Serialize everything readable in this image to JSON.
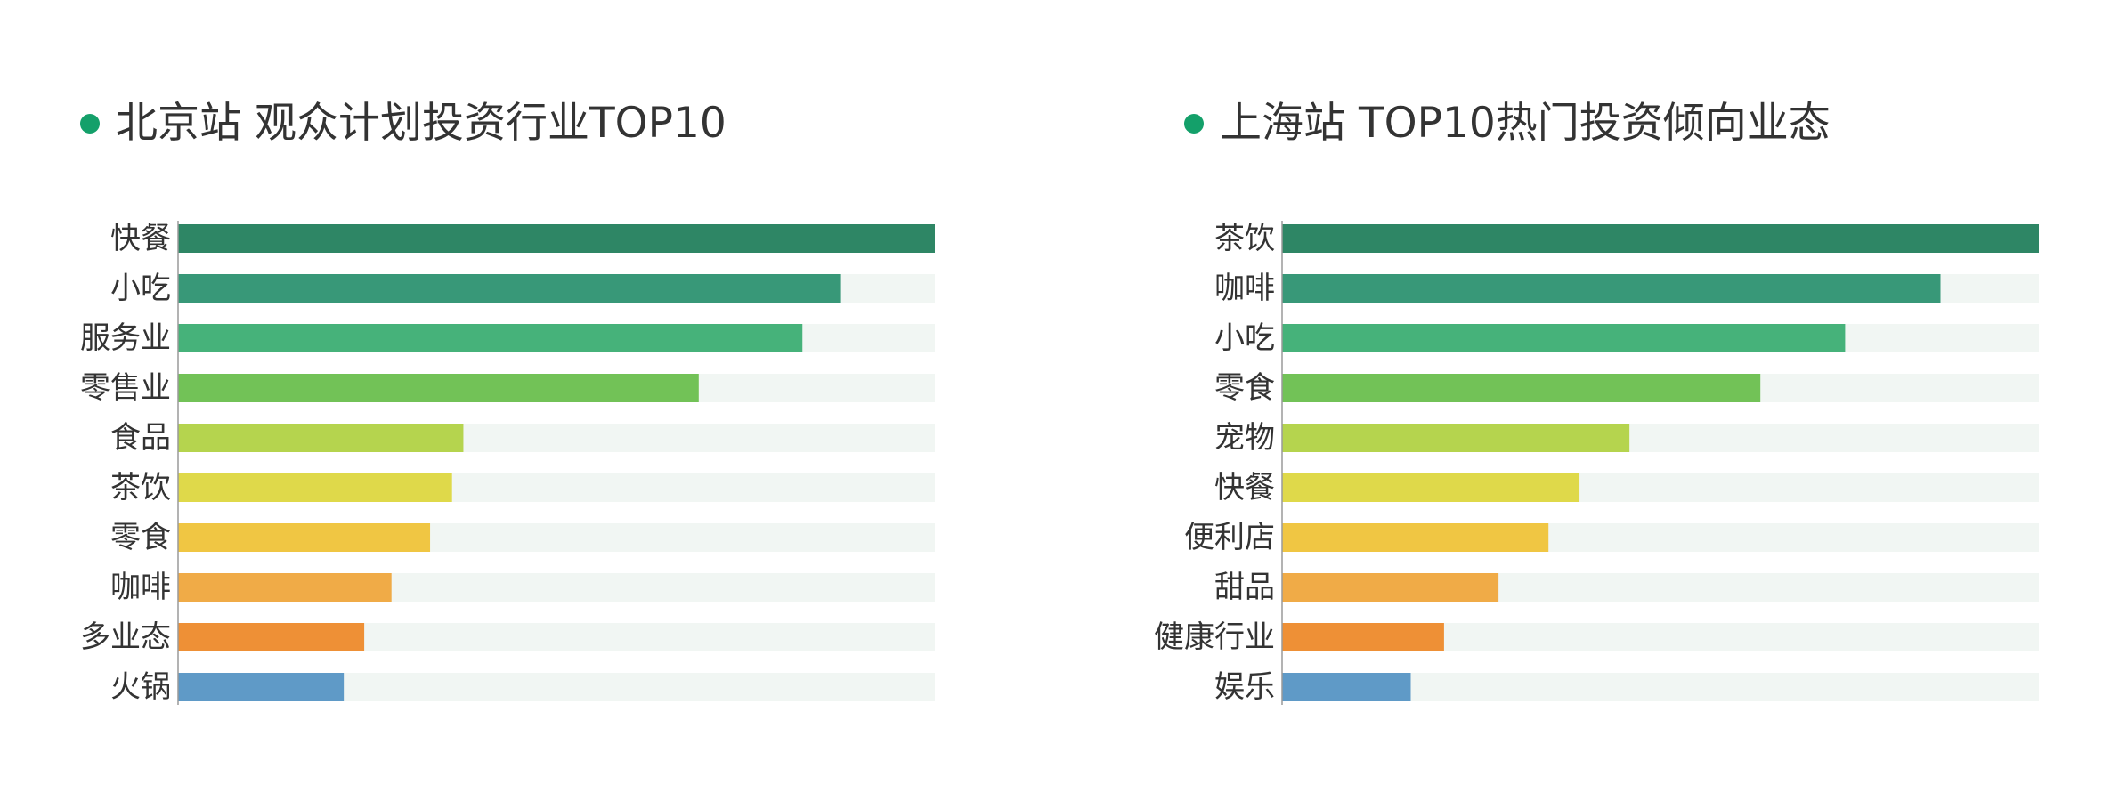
{
  "chart_data": [
    {
      "type": "bar",
      "orientation": "horizontal",
      "title": "北京站 观众计划投资行业TOP10",
      "categories": [
        "快餐",
        "小吃",
        "服务业",
        "零售业",
        "食品",
        "茶饮",
        "零食",
        "咖啡",
        "多业态",
        "火锅"
      ],
      "values": [
        100,
        87.6,
        82.5,
        68.8,
        37.7,
        36.2,
        33.3,
        28.2,
        24.6,
        21.9
      ],
      "xlim": [
        0,
        100
      ],
      "colors": [
        "#2e8665",
        "#389878",
        "#46b27a",
        "#72c257",
        "#b5d44e",
        "#dfd94a",
        "#f0c643",
        "#f0ab47",
        "#ee9036",
        "#5f9ac7"
      ],
      "track_color": "#f1f6f3",
      "axis_color": "#9a9a9a",
      "xlabel": "",
      "ylabel": ""
    },
    {
      "type": "bar",
      "orientation": "horizontal",
      "title": "上海站 TOP10热门投资倾向业态",
      "categories": [
        "茶饮",
        "咖啡",
        "小吃",
        "零食",
        "宠物",
        "快餐",
        "便利店",
        "甜品",
        "健康行业",
        "娱乐"
      ],
      "values": [
        100,
        87,
        74.4,
        63.2,
        45.9,
        39.3,
        35.2,
        28.6,
        21.4,
        17
      ],
      "xlim": [
        0,
        100
      ],
      "colors": [
        "#2e8665",
        "#389878",
        "#46b27a",
        "#72c257",
        "#b5d44e",
        "#dfd94a",
        "#f0c643",
        "#f0ab47",
        "#ee9036",
        "#5f9ac7"
      ],
      "track_color": "#f1f6f3",
      "axis_color": "#9a9a9a",
      "xlabel": "",
      "ylabel": ""
    }
  ],
  "accent_color": "#14a06a"
}
